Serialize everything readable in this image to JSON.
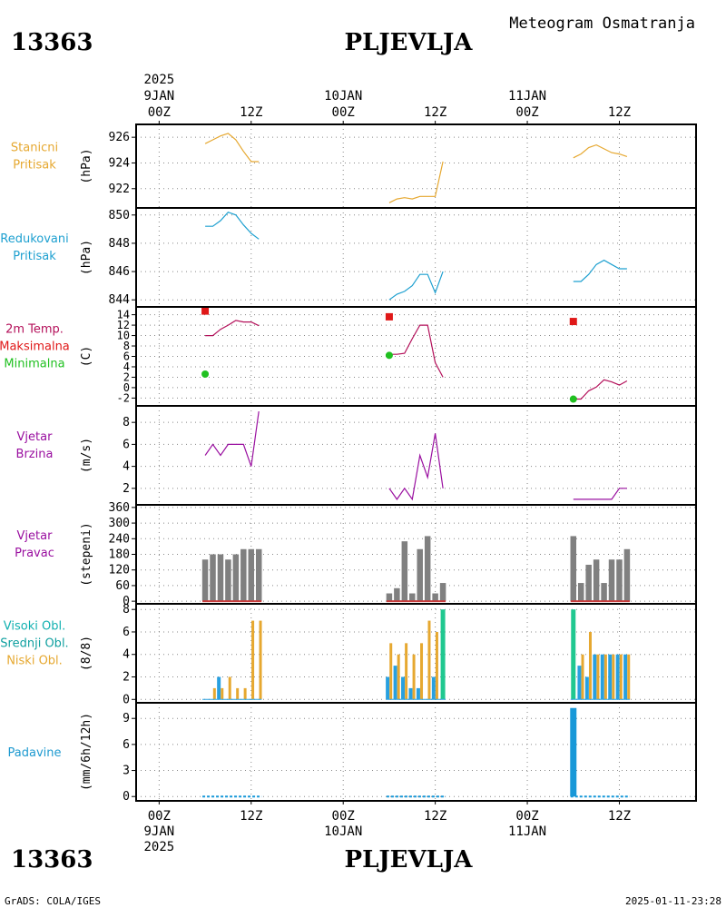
{
  "header": {
    "station_id": "13363",
    "station_name": "PLJEVLJA",
    "product": "Meteogram Osmatranja"
  },
  "footer": {
    "station_id": "13363",
    "station_name": "PLJEVLJA",
    "credit": "GrADS: COLA/IGES",
    "timestamp": "2025-01-11-23:28"
  },
  "time_axis": {
    "top": [
      {
        "line1": "2025",
        "line2": "9JAN",
        "line3": "00Z",
        "t": 0
      },
      {
        "line1": "",
        "line2": "",
        "line3": "12Z",
        "t": 12
      },
      {
        "line1": "",
        "line2": "10JAN",
        "line3": "00Z",
        "t": 24
      },
      {
        "line1": "",
        "line2": "",
        "line3": "12Z",
        "t": 36
      },
      {
        "line1": "",
        "line2": "11JAN",
        "line3": "00Z",
        "t": 48
      },
      {
        "line1": "",
        "line2": "",
        "line3": "12Z",
        "t": 60
      }
    ],
    "bottom": [
      {
        "line1": "00Z",
        "line2": "9JAN",
        "line3": "2025",
        "t": 0
      },
      {
        "line1": "12Z",
        "line2": "",
        "line3": "",
        "t": 12
      },
      {
        "line1": "00Z",
        "line2": "10JAN",
        "line3": "",
        "t": 24
      },
      {
        "line1": "12Z",
        "line2": "",
        "line3": "",
        "t": 36
      },
      {
        "line1": "00Z",
        "line2": "11JAN",
        "line3": "",
        "t": 48
      },
      {
        "line1": "12Z",
        "line2": "",
        "line3": "",
        "t": 60
      }
    ],
    "range_hours": [
      -3,
      70
    ]
  },
  "colors": {
    "station_pressure": "#e6a830",
    "reduced_pressure": "#1ea0d0",
    "temp": "#b4105a",
    "tmax": "#e01818",
    "tmin": "#20c020",
    "wind_speed": "#9a10a0",
    "wind_dir_label": "#9a10a0",
    "wind_dir_bar": "#808080",
    "wind_dir_base": "#c83c3c",
    "high_cloud": "#20c890",
    "mid_cloud": "#28a0e0",
    "low_cloud": "#e6a830",
    "clouds_label_high": "#10b0b0",
    "clouds_label_mid": "#10a0a0",
    "precip": "#1898d8",
    "precip_label": "#1e9ad0"
  },
  "chart_data": [
    {
      "type": "line",
      "id": "station_pressure",
      "labels": [
        "Stanicni",
        "Pritisak"
      ],
      "unit": "(hPa)",
      "ylim": [
        920.5,
        927
      ],
      "yticks": [
        922,
        924,
        926
      ],
      "x": [
        6,
        7,
        8,
        9,
        10,
        11,
        12,
        13,
        30,
        31,
        32,
        33,
        34,
        35,
        36,
        37,
        54,
        55,
        56,
        57,
        58,
        59,
        60,
        61
      ],
      "values": [
        925.5,
        925.8,
        926.1,
        926.3,
        925.8,
        924.9,
        924.1,
        924.1,
        920.9,
        921.2,
        921.3,
        921.2,
        921.4,
        921.4,
        921.4,
        924.1,
        924.4,
        924.7,
        925.2,
        925.4,
        925.1,
        924.8,
        924.7,
        924.5
      ],
      "gaps_after_index": [
        7,
        15
      ]
    },
    {
      "type": "line",
      "id": "reduced_pressure",
      "labels": [
        "Redukovani",
        "Pritisak"
      ],
      "unit": "(hPa)",
      "ylim": [
        843.5,
        850.5
      ],
      "yticks": [
        844,
        846,
        848,
        850
      ],
      "x": [
        6,
        7,
        8,
        9,
        10,
        11,
        12,
        13,
        30,
        31,
        32,
        33,
        34,
        35,
        36,
        37,
        54,
        55,
        56,
        57,
        58,
        59,
        60,
        61
      ],
      "values": [
        849.2,
        849.2,
        849.6,
        850.2,
        850.0,
        849.3,
        848.7,
        848.3,
        844.0,
        844.4,
        844.6,
        845.0,
        845.8,
        845.8,
        844.5,
        846.0,
        845.3,
        845.3,
        845.8,
        846.5,
        846.8,
        846.5,
        846.2,
        846.2
      ],
      "gaps_after_index": [
        7,
        15
      ]
    },
    {
      "type": "line",
      "id": "temperature",
      "labels": [
        "2m Temp.",
        "Maksimalna",
        "Minimalna"
      ],
      "unit": "(C)",
      "ylim": [
        -3.5,
        15.5
      ],
      "yticks": [
        -2,
        0,
        2,
        4,
        6,
        8,
        10,
        12,
        14
      ],
      "x": [
        6,
        7,
        8,
        9,
        10,
        11,
        12,
        13,
        30,
        31,
        32,
        33,
        34,
        35,
        36,
        37,
        54,
        55,
        56,
        57,
        58,
        59,
        60,
        61
      ],
      "values": [
        10,
        10,
        11.2,
        12,
        12.9,
        12.6,
        12.6,
        11.9,
        6.4,
        6.4,
        6.6,
        9.4,
        12.0,
        12.0,
        4.8,
        2.0,
        -2.2,
        -2.2,
        -0.6,
        0.1,
        1.5,
        1.1,
        0.5,
        1.3
      ],
      "gaps_after_index": [
        7,
        15
      ],
      "tmax": {
        "x": [
          6,
          30,
          54
        ],
        "values": [
          14.7,
          13.6,
          12.7
        ]
      },
      "tmin": {
        "x": [
          6,
          30,
          54
        ],
        "values": [
          2.6,
          6.2,
          -2.2
        ]
      }
    },
    {
      "type": "line",
      "id": "wind_speed",
      "labels": [
        "Vjetar",
        "Brzina"
      ],
      "unit": "(m/s)",
      "ylim": [
        0.5,
        9.5
      ],
      "yticks": [
        2,
        4,
        6,
        8
      ],
      "x": [
        6,
        7,
        8,
        9,
        10,
        11,
        12,
        13,
        30,
        31,
        32,
        33,
        34,
        35,
        36,
        37,
        54,
        55,
        56,
        57,
        58,
        59,
        60,
        61
      ],
      "values": [
        5,
        6,
        5,
        6,
        6,
        6,
        4,
        9,
        2,
        1,
        2,
        1,
        5,
        3,
        7,
        2,
        1,
        1,
        1,
        1,
        1,
        1,
        2,
        2
      ],
      "gaps_after_index": [
        7,
        15
      ]
    },
    {
      "type": "bar",
      "id": "wind_direction",
      "labels": [
        "Vjetar",
        "Pravac"
      ],
      "unit": "(stepeni)",
      "ylim": [
        -10,
        370
      ],
      "yticks": [
        0,
        60,
        120,
        180,
        240,
        300,
        360
      ],
      "x": [
        6,
        7,
        8,
        9,
        10,
        11,
        12,
        13,
        30,
        31,
        32,
        33,
        34,
        35,
        36,
        37,
        54,
        55,
        56,
        57,
        58,
        59,
        60,
        61
      ],
      "values": [
        160,
        180,
        180,
        160,
        180,
        200,
        200,
        200,
        30,
        50,
        230,
        30,
        200,
        250,
        30,
        70,
        250,
        70,
        140,
        160,
        70,
        160,
        160,
        200
      ]
    },
    {
      "type": "bar",
      "id": "clouds",
      "labels": [
        "Visoki Obl.",
        "Srednji Obl.",
        "Niski Obl."
      ],
      "unit": "(8/8)",
      "ylim": [
        -0.3,
        8.5
      ],
      "yticks": [
        0,
        2,
        4,
        6,
        8
      ],
      "x": [
        6,
        7,
        8,
        9,
        10,
        11,
        12,
        13,
        30,
        31,
        32,
        33,
        34,
        35,
        36,
        37,
        54,
        55,
        56,
        57,
        58,
        59,
        60,
        61
      ],
      "series": [
        {
          "name": "Visoki Obl.",
          "values": [
            0,
            0,
            0,
            0,
            0,
            0,
            0,
            0,
            0,
            0,
            0,
            0,
            0,
            0,
            0,
            8,
            8,
            0,
            0,
            0,
            0,
            0,
            0,
            0
          ]
        },
        {
          "name": "Srednji Obl.",
          "values": [
            0,
            0,
            2,
            0,
            0,
            0,
            0,
            0,
            2,
            3,
            2,
            1,
            1,
            0,
            2,
            0,
            0,
            3,
            2,
            4,
            4,
            4,
            4,
            4
          ]
        },
        {
          "name": "Niski Obl.",
          "values": [
            0,
            1,
            1,
            2,
            1,
            1,
            7,
            7,
            5,
            4,
            5,
            4,
            5,
            7,
            6,
            0,
            0,
            4,
            6,
            4,
            4,
            4,
            4,
            4
          ]
        }
      ]
    },
    {
      "type": "bar",
      "id": "precipitation",
      "labels": [
        "Padavine"
      ],
      "unit": "(mm/6h/12h)",
      "ylim": [
        -0.5,
        10.8
      ],
      "yticks": [
        0,
        3,
        6,
        9
      ],
      "x": [
        6,
        7,
        8,
        9,
        10,
        11,
        12,
        13,
        30,
        31,
        32,
        33,
        34,
        35,
        36,
        37,
        54,
        55,
        56,
        57,
        58,
        59,
        60,
        61
      ],
      "values": [
        0,
        0,
        0,
        0,
        0,
        0,
        0,
        0,
        0,
        0,
        0,
        0,
        0,
        0,
        0,
        0,
        10.2,
        0,
        0,
        0,
        0,
        0,
        0,
        0
      ]
    }
  ]
}
